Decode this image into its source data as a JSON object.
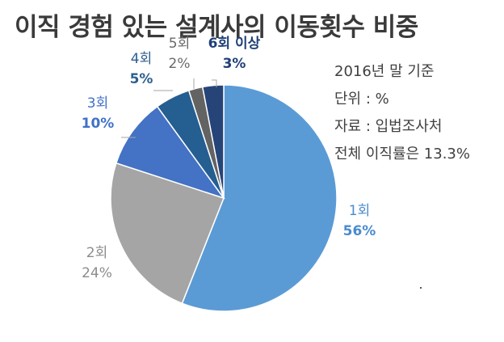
{
  "title": "이직 경험 있는 설계사의 이동횟수 비중",
  "notes": [
    "2016년 말 기준",
    "단위 : %",
    "자료 : 입법조사처",
    "전체 이직률은 13.3%"
  ],
  "chart_data": {
    "type": "pie",
    "title": "이직 경험 있는 설계사의 이동횟수 비중",
    "categories": [
      "1회",
      "2회",
      "3회",
      "4회",
      "5회",
      "6회 이상"
    ],
    "values": [
      56,
      24,
      10,
      5,
      2,
      3
    ],
    "value_labels": [
      "56%",
      "24%",
      "10%",
      "5%",
      "2%",
      "3%"
    ],
    "colors": [
      "#5b9bd5",
      "#a5a5a5",
      "#4472c4",
      "#255e91",
      "#636363",
      "#264478"
    ],
    "label_colors": [
      "#4a8bd0",
      "#8c8c8c",
      "#3f72c8",
      "#2e5f8f",
      "#6a6a6a",
      "#1f3f78"
    ],
    "unit": "%",
    "start_angle_deg": 0,
    "direction": "clockwise",
    "legend": "none"
  }
}
